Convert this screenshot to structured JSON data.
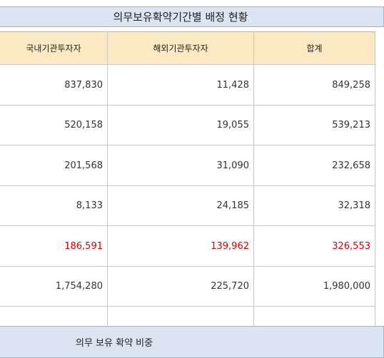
{
  "title": "의무보유확약기간별 배정 현황",
  "table": {
    "headers": [
      "국내기관투자자",
      "해외기관투자자",
      "합계"
    ],
    "rows": [
      [
        "837,830",
        "11,428",
        "849,258"
      ],
      [
        "520,158",
        "19,055",
        "539,213"
      ],
      [
        "201,568",
        "31,090",
        "232,658"
      ],
      [
        "8,133",
        "24,185",
        "32,318"
      ],
      [
        "186,591",
        "139,962",
        "326,553"
      ],
      [
        "1,754,280",
        "225,720",
        "1,980,000"
      ]
    ],
    "highlight_row": 4
  },
  "footer_title": "의무 보유 확약 비중"
}
